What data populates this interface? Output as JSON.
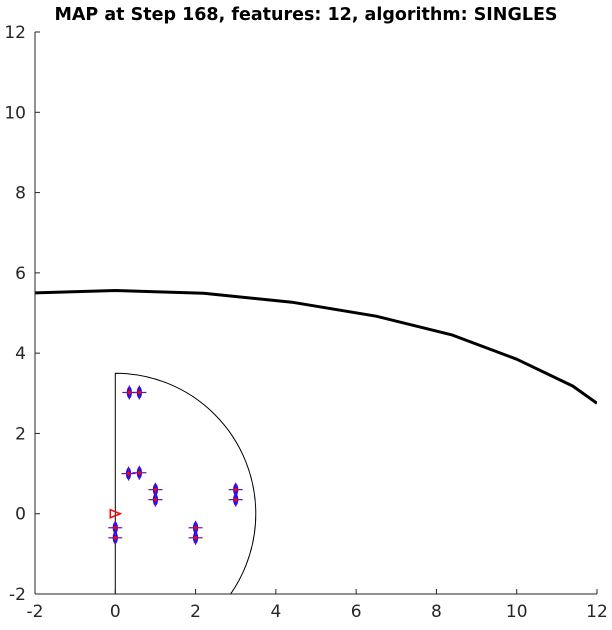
{
  "chart_data": {
    "type": "scatter",
    "title": "MAP at Step 168, features: 12, algorithm: SINGLES",
    "xlabel": "",
    "ylabel": "",
    "xlim": [
      -2,
      12
    ],
    "ylim": [
      -2,
      12
    ],
    "xticks": [
      "-2",
      "0",
      "2",
      "4",
      "6",
      "8",
      "10",
      "12"
    ],
    "yticks": [
      "-2",
      "0",
      "2",
      "4",
      "6",
      "8",
      "10",
      "12"
    ],
    "grid": false,
    "box": "left-bottom axes only",
    "series": [
      {
        "role": "trajectory-line",
        "color": "#000000",
        "points": [
          [
            -2,
            5.5
          ],
          [
            0,
            5.56
          ],
          [
            2.2,
            5.49
          ],
          [
            4.4,
            5.27
          ],
          [
            6.5,
            4.92
          ],
          [
            8.4,
            4.45
          ],
          [
            10,
            3.85
          ],
          [
            11.4,
            3.18
          ],
          [
            12,
            2.75
          ]
        ]
      },
      {
        "role": "sensor-range-arc",
        "color": "#000000",
        "center": [
          0,
          0
        ],
        "radius": 3.5,
        "from_angle_deg": -90,
        "to_angle_deg": 90,
        "includes_vertical_edge": true
      },
      {
        "role": "features",
        "marker": "plus",
        "marker_color": "#6a0dad",
        "ellipse_color": "#1010ff",
        "true_dot_color": "#ff0000",
        "points": [
          [
            0.35,
            3.02
          ],
          [
            0.6,
            3.02
          ],
          [
            0.33,
            1.0
          ],
          [
            0.6,
            1.02
          ],
          [
            1.0,
            0.6
          ],
          [
            1.0,
            0.35
          ],
          [
            0.0,
            -0.35
          ],
          [
            0.0,
            -0.6
          ],
          [
            2.0,
            -0.35
          ],
          [
            2.0,
            -0.6
          ],
          [
            3.0,
            0.6
          ],
          [
            3.0,
            0.35
          ]
        ]
      },
      {
        "role": "robot-pose",
        "marker": "triangle",
        "color": "#ff0000",
        "point": [
          0.0,
          0.0
        ],
        "heading_deg": 0
      }
    ]
  }
}
